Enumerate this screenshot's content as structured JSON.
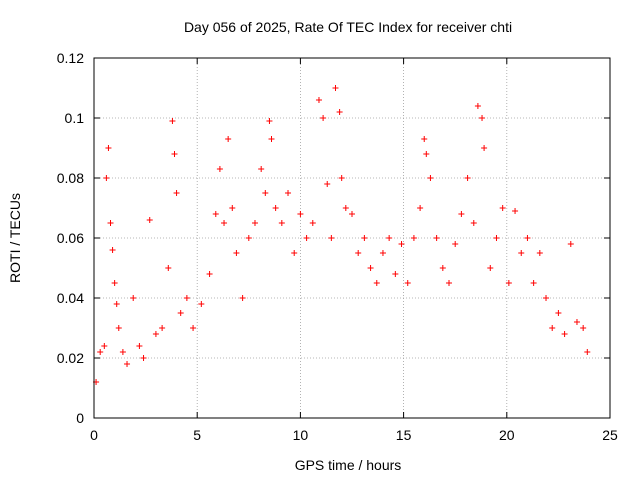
{
  "chart_data": {
    "type": "scatter",
    "title": "Day 056 of 2025, Rate Of TEC Index for receiver chti",
    "xlabel": "GPS time / hours",
    "ylabel": "ROTI / TECUs",
    "xlim": [
      0,
      25
    ],
    "ylim": [
      0,
      0.12
    ],
    "xticks": [
      0,
      5,
      10,
      15,
      20,
      25
    ],
    "xtick_labels": [
      "0",
      "5",
      "10",
      "15",
      "20",
      "25"
    ],
    "yticks": [
      0,
      0.02,
      0.04,
      0.06,
      0.08,
      0.1,
      0.12
    ],
    "ytick_labels": [
      "0",
      "0.02",
      "0.04",
      "0.06",
      "0.08",
      "0.1",
      "0.12"
    ],
    "grid": true,
    "marker": "+",
    "marker_color": "#ff0000",
    "series": [
      {
        "name": "ROTI",
        "x": [
          0.1,
          0.3,
          0.5,
          0.6,
          0.7,
          0.8,
          0.9,
          1.0,
          1.1,
          1.2,
          1.4,
          1.6,
          1.9,
          2.2,
          2.4,
          2.7,
          3.0,
          3.3,
          3.6,
          3.8,
          3.9,
          4.0,
          4.2,
          4.5,
          4.8,
          5.2,
          5.6,
          5.9,
          6.1,
          6.3,
          6.5,
          6.7,
          6.9,
          7.2,
          7.5,
          7.8,
          8.1,
          8.3,
          8.5,
          8.6,
          8.8,
          9.1,
          9.4,
          9.7,
          10.0,
          10.3,
          10.6,
          10.9,
          11.1,
          11.3,
          11.5,
          11.7,
          11.9,
          12.0,
          12.2,
          12.5,
          12.8,
          13.1,
          13.4,
          13.7,
          14.0,
          14.3,
          14.6,
          14.9,
          15.2,
          15.5,
          15.8,
          16.0,
          16.1,
          16.3,
          16.6,
          16.9,
          17.2,
          17.5,
          17.8,
          18.1,
          18.4,
          18.6,
          18.8,
          18.9,
          19.2,
          19.5,
          19.8,
          20.1,
          20.4,
          20.7,
          21.0,
          21.3,
          21.6,
          21.9,
          22.2,
          22.5,
          22.8,
          23.1,
          23.4,
          23.7,
          23.9
        ],
        "y": [
          0.012,
          0.022,
          0.024,
          0.08,
          0.09,
          0.065,
          0.056,
          0.045,
          0.038,
          0.03,
          0.022,
          0.018,
          0.04,
          0.024,
          0.02,
          0.066,
          0.028,
          0.03,
          0.05,
          0.099,
          0.088,
          0.075,
          0.035,
          0.04,
          0.03,
          0.038,
          0.048,
          0.068,
          0.083,
          0.065,
          0.093,
          0.07,
          0.055,
          0.04,
          0.06,
          0.065,
          0.083,
          0.075,
          0.099,
          0.093,
          0.07,
          0.065,
          0.075,
          0.055,
          0.068,
          0.06,
          0.065,
          0.106,
          0.1,
          0.078,
          0.06,
          0.11,
          0.102,
          0.08,
          0.07,
          0.068,
          0.055,
          0.06,
          0.05,
          0.045,
          0.055,
          0.06,
          0.048,
          0.058,
          0.045,
          0.06,
          0.07,
          0.093,
          0.088,
          0.08,
          0.06,
          0.05,
          0.045,
          0.058,
          0.068,
          0.08,
          0.065,
          0.104,
          0.1,
          0.09,
          0.05,
          0.06,
          0.07,
          0.045,
          0.069,
          0.055,
          0.06,
          0.045,
          0.055,
          0.04,
          0.03,
          0.035,
          0.028,
          0.058,
          0.032,
          0.03,
          0.022
        ]
      }
    ]
  }
}
